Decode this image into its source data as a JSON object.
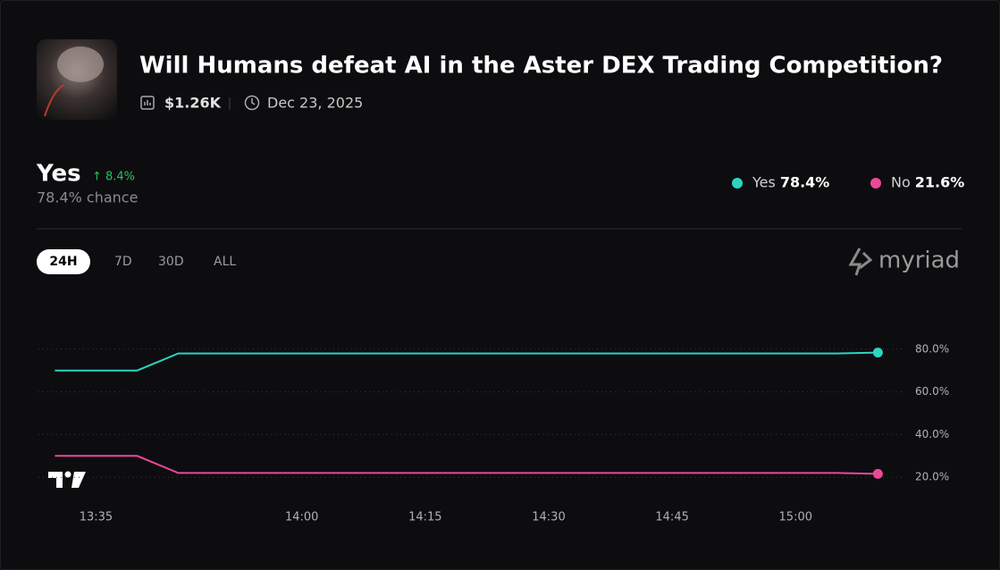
{
  "header": {
    "title": "Will Humans defeat AI in the Aster DEX Trading Competition?",
    "volume": "$1.26K",
    "date": "Dec 23, 2025"
  },
  "summary": {
    "leader": "Yes",
    "change": "8.4%",
    "chance": "78.4% chance",
    "legend_values": [
      "78.4%",
      "21.6%"
    ]
  },
  "tabs": [
    "24H",
    "7D",
    "30D",
    "ALL"
  ],
  "brand": "myriad",
  "chart_data": {
    "type": "line",
    "x": [
      "13:30",
      "13:40",
      "13:45",
      "15:05",
      "15:10"
    ],
    "series": [
      {
        "name": "Yes",
        "color": "#2dd4bf",
        "values": [
          70,
          70,
          78,
          78,
          78.4
        ]
      },
      {
        "name": "No",
        "color": "#ec4899",
        "values": [
          30,
          30,
          22,
          22,
          21.6
        ]
      }
    ],
    "xlim": [
      "13:28",
      "15:13"
    ],
    "xticks": [
      "13:35",
      "14:00",
      "14:15",
      "14:30",
      "14:45",
      "15:00"
    ],
    "ylim": [
      0,
      100
    ],
    "yticks": [
      {
        "value": 20,
        "label": "20.0%"
      },
      {
        "value": 40,
        "label": "40.0%"
      },
      {
        "value": 60,
        "label": "60.0%"
      },
      {
        "value": 80,
        "label": "80.0%"
      }
    ],
    "grid": true
  }
}
